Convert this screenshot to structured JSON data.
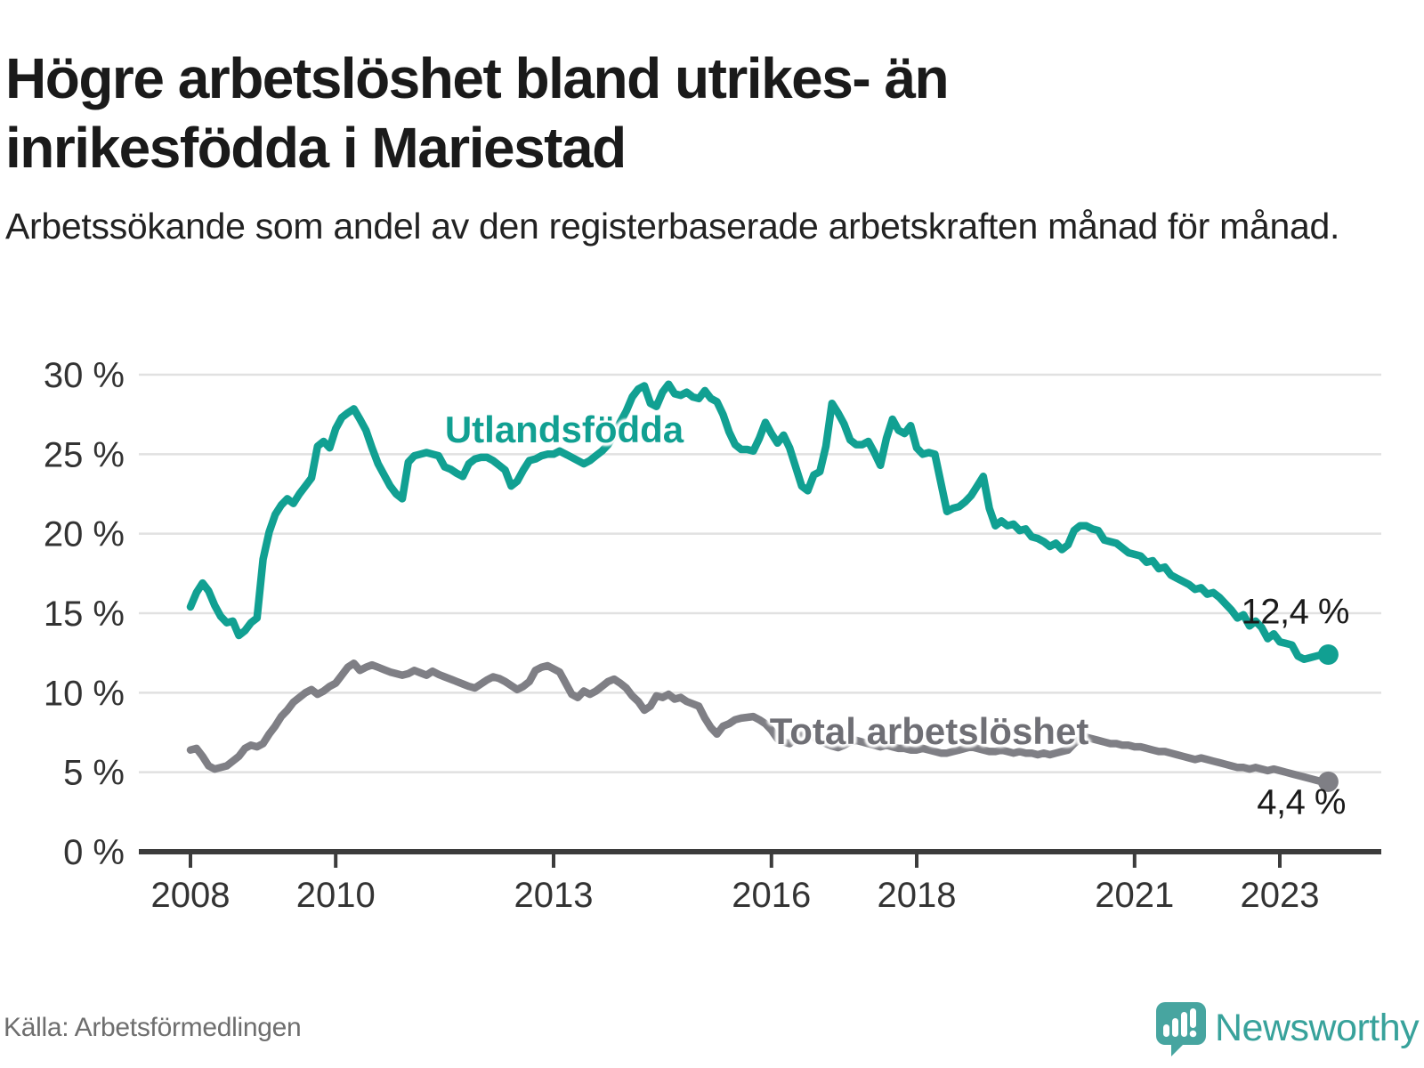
{
  "title": "Högre arbetslöshet bland utrikes- än inrikesfödda i Mariestad",
  "subtitle": "Arbetssökande som andel av den registerbaserade arbetskraften månad för månad.",
  "footer": {
    "source": "Källa: Arbetsförmedlingen",
    "brand": "Newsworthy"
  },
  "colors": {
    "foreign_born_line": "#11a092",
    "total_line": "#7f7f85",
    "total_label": "#6f6f75",
    "grid": "#e1e1e1",
    "axis": "#3c3c3c",
    "axis_text": "#333333",
    "title_text": "#1a1a1a",
    "brand_teal": "#47a5a0"
  },
  "chart_data": {
    "type": "line",
    "title": "Högre arbetslöshet bland utrikes- än inrikesfödda i Mariestad",
    "subtitle": "Arbetssökande som andel av den registerbaserade arbetskraften månad för månad.",
    "unit": "%",
    "grid": true,
    "x_start": "2008-01",
    "x_end": "2023-09",
    "x_tick_years": [
      2008,
      2010,
      2013,
      2016,
      2018,
      2021,
      2023
    ],
    "ylim": [
      0,
      30
    ],
    "y_ticks": [
      0,
      5,
      10,
      15,
      20,
      25,
      30
    ],
    "y_tick_labels": [
      "0 %",
      "5 %",
      "10 %",
      "15 %",
      "20 %",
      "25 %",
      "30 %"
    ],
    "series": [
      {
        "name": "Utlandsfödda",
        "color": "#11a092",
        "end_label": "12,4 %",
        "end_value": 12.4,
        "values": [
          15.4,
          16.3,
          16.9,
          16.4,
          15.5,
          14.8,
          14.4,
          14.5,
          13.6,
          13.9,
          14.4,
          14.7,
          18.4,
          20.1,
          21.2,
          21.8,
          22.2,
          21.9,
          22.5,
          23.0,
          23.5,
          25.5,
          25.8,
          25.4,
          26.6,
          27.3,
          27.6,
          27.85,
          27.2,
          26.5,
          25.4,
          24.4,
          23.7,
          23.0,
          22.5,
          22.2,
          24.5,
          24.9,
          25.0,
          25.1,
          25.0,
          24.9,
          24.2,
          24.05,
          23.8,
          23.6,
          24.4,
          24.7,
          24.8,
          24.8,
          24.6,
          24.3,
          24.0,
          23.0,
          23.3,
          24.0,
          24.6,
          24.7,
          24.9,
          25.0,
          25.0,
          25.2,
          25.0,
          24.8,
          24.6,
          24.4,
          24.6,
          24.9,
          25.2,
          25.6,
          26.2,
          27.0,
          27.7,
          28.6,
          29.1,
          29.3,
          28.2,
          28.0,
          28.9,
          29.4,
          28.8,
          28.7,
          28.9,
          28.6,
          28.5,
          29.0,
          28.5,
          28.3,
          27.5,
          26.4,
          25.6,
          25.3,
          25.3,
          25.2,
          26.0,
          27.0,
          26.3,
          25.7,
          26.2,
          25.4,
          24.2,
          23.0,
          22.7,
          23.7,
          23.9,
          25.5,
          28.2,
          27.6,
          26.9,
          25.9,
          25.6,
          25.6,
          25.8,
          25.1,
          24.3,
          26.0,
          27.2,
          26.5,
          26.3,
          26.8,
          25.4,
          25.0,
          25.1,
          25.0,
          23.2,
          21.4,
          21.6,
          21.7,
          22.0,
          22.4,
          23.0,
          23.6,
          21.6,
          20.5,
          20.8,
          20.5,
          20.6,
          20.2,
          20.3,
          19.8,
          19.7,
          19.5,
          19.2,
          19.4,
          19.0,
          19.3,
          20.2,
          20.5,
          20.5,
          20.3,
          20.2,
          19.6,
          19.5,
          19.4,
          19.1,
          18.8,
          18.7,
          18.6,
          18.2,
          18.3,
          17.8,
          17.9,
          17.4,
          17.2,
          17.0,
          16.8,
          16.5,
          16.6,
          16.2,
          16.3,
          16.0,
          15.6,
          15.2,
          14.7,
          14.9,
          14.2,
          14.5,
          14.1,
          13.4,
          13.7,
          13.2,
          13.1,
          13.0,
          12.3,
          12.1,
          12.2,
          12.3,
          12.4,
          12.4
        ]
      },
      {
        "name": "Total arbetslöshet",
        "color": "#7f7f85",
        "end_label": "4,4 %",
        "end_value": 4.4,
        "values": [
          6.4,
          6.5,
          6.0,
          5.4,
          5.2,
          5.3,
          5.4,
          5.7,
          6.0,
          6.5,
          6.7,
          6.6,
          6.8,
          7.4,
          7.9,
          8.5,
          8.9,
          9.4,
          9.7,
          10.0,
          10.2,
          9.9,
          10.1,
          10.4,
          10.6,
          11.1,
          11.6,
          11.85,
          11.4,
          11.6,
          11.75,
          11.6,
          11.45,
          11.3,
          11.2,
          11.1,
          11.2,
          11.4,
          11.25,
          11.1,
          11.35,
          11.15,
          11.0,
          10.85,
          10.7,
          10.55,
          10.4,
          10.3,
          10.55,
          10.8,
          11.0,
          10.9,
          10.7,
          10.45,
          10.2,
          10.4,
          10.7,
          11.4,
          11.6,
          11.7,
          11.5,
          11.3,
          10.6,
          9.9,
          9.7,
          10.1,
          9.9,
          10.1,
          10.4,
          10.7,
          10.85,
          10.6,
          10.3,
          9.8,
          9.45,
          8.9,
          9.15,
          9.8,
          9.7,
          9.9,
          9.6,
          9.7,
          9.45,
          9.3,
          9.15,
          8.4,
          7.8,
          7.4,
          7.9,
          8.05,
          8.3,
          8.4,
          8.45,
          8.5,
          8.3,
          8.05,
          7.65,
          7.1,
          6.9,
          6.8,
          7.2,
          7.35,
          7.4,
          7.2,
          7.0,
          6.8,
          6.65,
          6.55,
          6.7,
          6.9,
          7.0,
          6.9,
          6.8,
          6.7,
          6.6,
          6.7,
          6.6,
          6.5,
          6.5,
          6.4,
          6.4,
          6.5,
          6.4,
          6.3,
          6.2,
          6.2,
          6.3,
          6.4,
          6.5,
          6.6,
          6.5,
          6.4,
          6.3,
          6.3,
          6.4,
          6.3,
          6.2,
          6.3,
          6.2,
          6.2,
          6.1,
          6.2,
          6.1,
          6.2,
          6.3,
          6.4,
          6.8,
          7.1,
          7.2,
          7.1,
          7.0,
          6.9,
          6.8,
          6.8,
          6.7,
          6.7,
          6.6,
          6.6,
          6.5,
          6.4,
          6.3,
          6.3,
          6.2,
          6.1,
          6.0,
          5.9,
          5.8,
          5.9,
          5.8,
          5.7,
          5.6,
          5.5,
          5.4,
          5.3,
          5.3,
          5.2,
          5.3,
          5.2,
          5.1,
          5.2,
          5.1,
          5.0,
          4.9,
          4.8,
          4.7,
          4.6,
          4.5,
          4.4,
          4.4
        ]
      }
    ],
    "legend_position": "inline-labels"
  }
}
